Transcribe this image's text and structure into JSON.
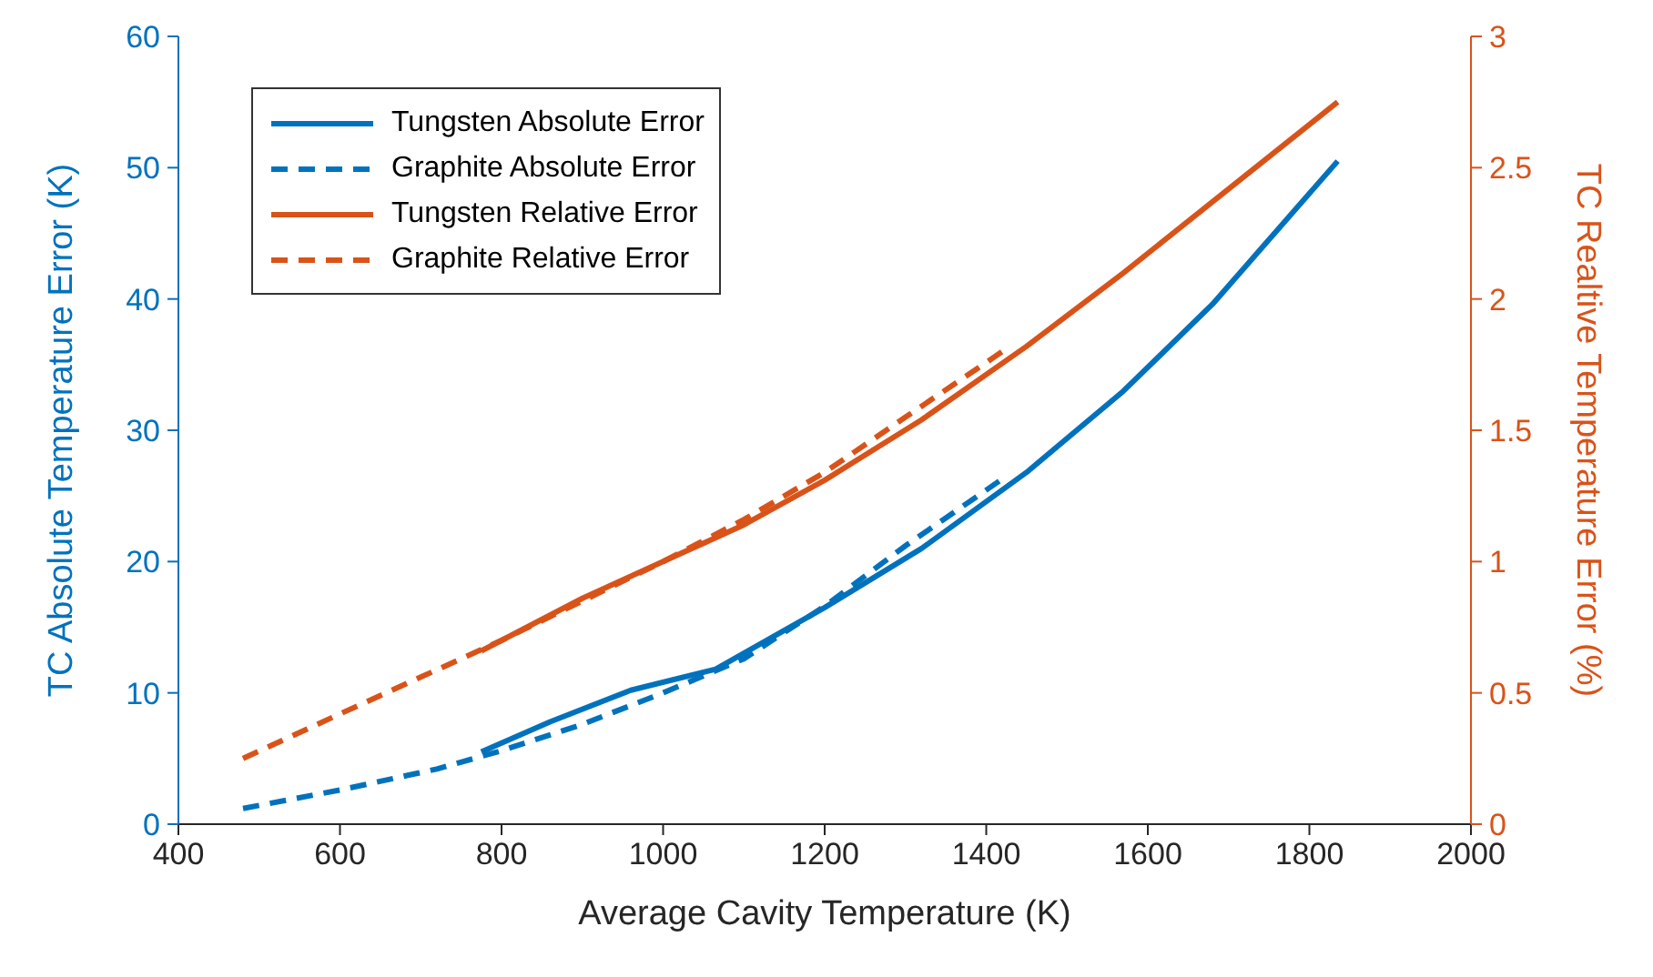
{
  "chart_data": {
    "type": "line",
    "xlabel": "Average Cavity Temperature (K)",
    "ylabel": "TC Absolute Temperature Error (K)",
    "y2label": "TC Realtive Temperature Error (%)",
    "xlim": [
      400,
      2000
    ],
    "xticks": [
      400,
      600,
      800,
      1000,
      1200,
      1400,
      1600,
      1800,
      2000
    ],
    "ylim": [
      0,
      60
    ],
    "yticks": [
      0,
      10,
      20,
      30,
      40,
      50,
      60
    ],
    "y2lim": [
      0,
      3
    ],
    "y2ticks": [
      0,
      0.5,
      1,
      1.5,
      2,
      2.5,
      3
    ],
    "legend": "top left",
    "grid": false,
    "marker": "none",
    "series": [
      {
        "name": "Tungsten Absolute Error",
        "color": "#0072bd",
        "line_style": "solid",
        "x": [
          775,
          860,
          960,
          1065,
          1200,
          1320,
          1450,
          1570,
          1680,
          1835
        ],
        "values": [
          5.5,
          7.8,
          10.2,
          11.8,
          16.5,
          21,
          26.8,
          33,
          39.6,
          50.5
        ]
      },
      {
        "name": "Graphite Absolute Error",
        "color": "#0072bd",
        "line_style": "dashed",
        "x": [
          480,
          600,
          720,
          800,
          900,
          1000,
          1100,
          1200,
          1300,
          1420
        ],
        "values": [
          1.2,
          2.6,
          4.2,
          5.6,
          7.6,
          10,
          12.6,
          16.6,
          21.2,
          26.3
        ]
      },
      {
        "name": "Tungsten Relative Error",
        "color": "#d95319",
        "line_style": "solid",
        "axis": "y2",
        "x": [
          775,
          900,
          1000,
          1100,
          1200,
          1320,
          1450,
          1570,
          1680,
          1835
        ],
        "values": [
          0.66,
          0.86,
          1,
          1.14,
          1.31,
          1.54,
          1.82,
          2.1,
          2.37,
          2.75
        ]
      },
      {
        "name": "Graphite Relative Error",
        "color": "#d95319",
        "line_style": "dashed",
        "axis": "y2",
        "x": [
          480,
          600,
          700,
          800,
          900,
          1000,
          1100,
          1200,
          1300,
          1420
        ],
        "values": [
          0.25,
          0.42,
          0.56,
          0.7,
          0.85,
          1,
          1.16,
          1.34,
          1.55,
          1.8
        ]
      }
    ]
  }
}
